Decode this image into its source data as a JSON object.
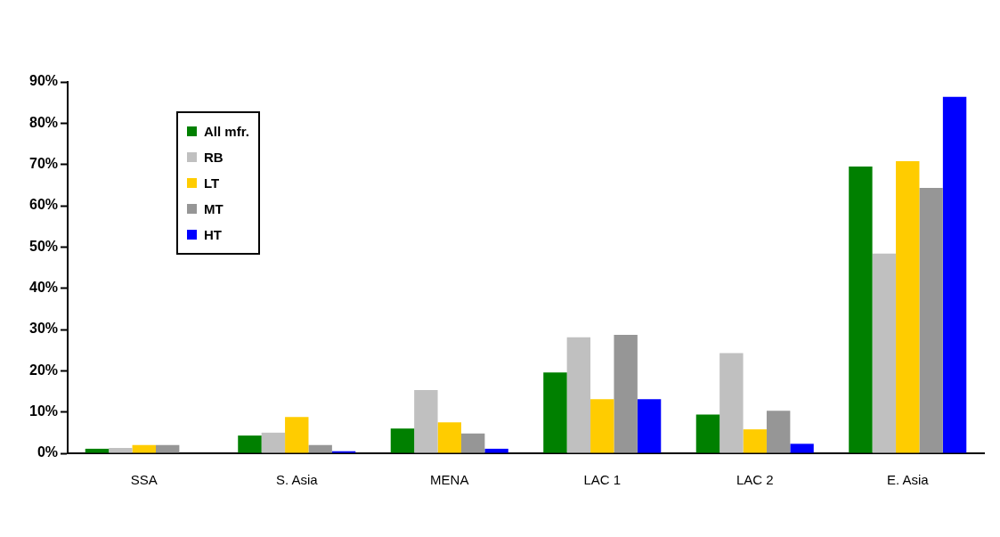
{
  "chart_data": {
    "type": "bar",
    "categories": [
      "SSA",
      "S. Asia",
      "MENA",
      "LAC 1",
      "LAC 2",
      "E. Asia"
    ],
    "series": [
      {
        "name": "All mfr.",
        "color": "#008000",
        "values": [
          1.1,
          4.3,
          6.0,
          19.6,
          9.4,
          69.5
        ]
      },
      {
        "name": "RB",
        "color": "#c0c0c0",
        "values": [
          1.3,
          5.0,
          15.3,
          28.1,
          24.3,
          48.4
        ]
      },
      {
        "name": "LT",
        "color": "#ffcc00",
        "values": [
          2.0,
          8.8,
          7.5,
          13.1,
          5.8,
          70.8
        ]
      },
      {
        "name": "MT",
        "color": "#969696",
        "values": [
          2.0,
          2.0,
          4.8,
          28.7,
          10.3,
          64.3
        ]
      },
      {
        "name": "HT",
        "color": "#0000ff",
        "values": [
          0,
          0.5,
          1.1,
          13.1,
          2.3,
          86.4
        ]
      }
    ],
    "ylim": [
      0,
      90
    ],
    "yticks": [
      {
        "value": 0,
        "label": "0%"
      },
      {
        "value": 10,
        "label": "10%"
      },
      {
        "value": 20,
        "label": "20%"
      },
      {
        "value": 30,
        "label": "30%"
      },
      {
        "value": 40,
        "label": "40%"
      },
      {
        "value": 50,
        "label": "50%"
      },
      {
        "value": 60,
        "label": "60%"
      },
      {
        "value": 70,
        "label": "70%"
      },
      {
        "value": 80,
        "label": "80%"
      },
      {
        "value": 90,
        "label": "90%"
      }
    ],
    "grid": false,
    "legend": "top left"
  }
}
